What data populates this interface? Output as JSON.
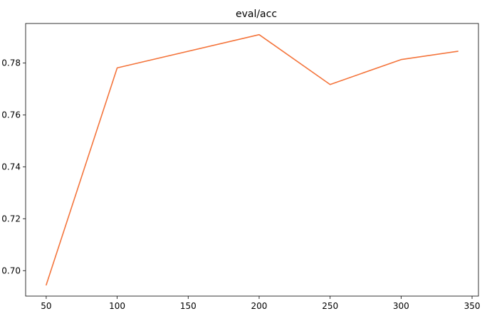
{
  "chart_data": {
    "type": "line",
    "title": "eval/acc",
    "xlabel": "",
    "ylabel": "",
    "x": [
      50,
      100,
      200,
      250,
      300,
      340
    ],
    "series": [
      {
        "values": [
          0.6945,
          0.7781,
          0.7909,
          0.7717,
          0.7813,
          0.7845
        ],
        "color": "#f4743b"
      }
    ],
    "xlim": [
      35.5,
      354.5
    ],
    "ylim": [
      0.6902,
      0.7952
    ],
    "xticks": [
      50,
      100,
      150,
      200,
      250,
      300,
      350
    ],
    "xtick_labels": [
      "50",
      "100",
      "150",
      "200",
      "250",
      "300",
      "350"
    ],
    "yticks": [
      0.7,
      0.72,
      0.74,
      0.76,
      0.78
    ],
    "ytick_labels": [
      "0.70",
      "0.72",
      "0.74",
      "0.76",
      "0.78"
    ],
    "grid": false,
    "legend": false
  }
}
